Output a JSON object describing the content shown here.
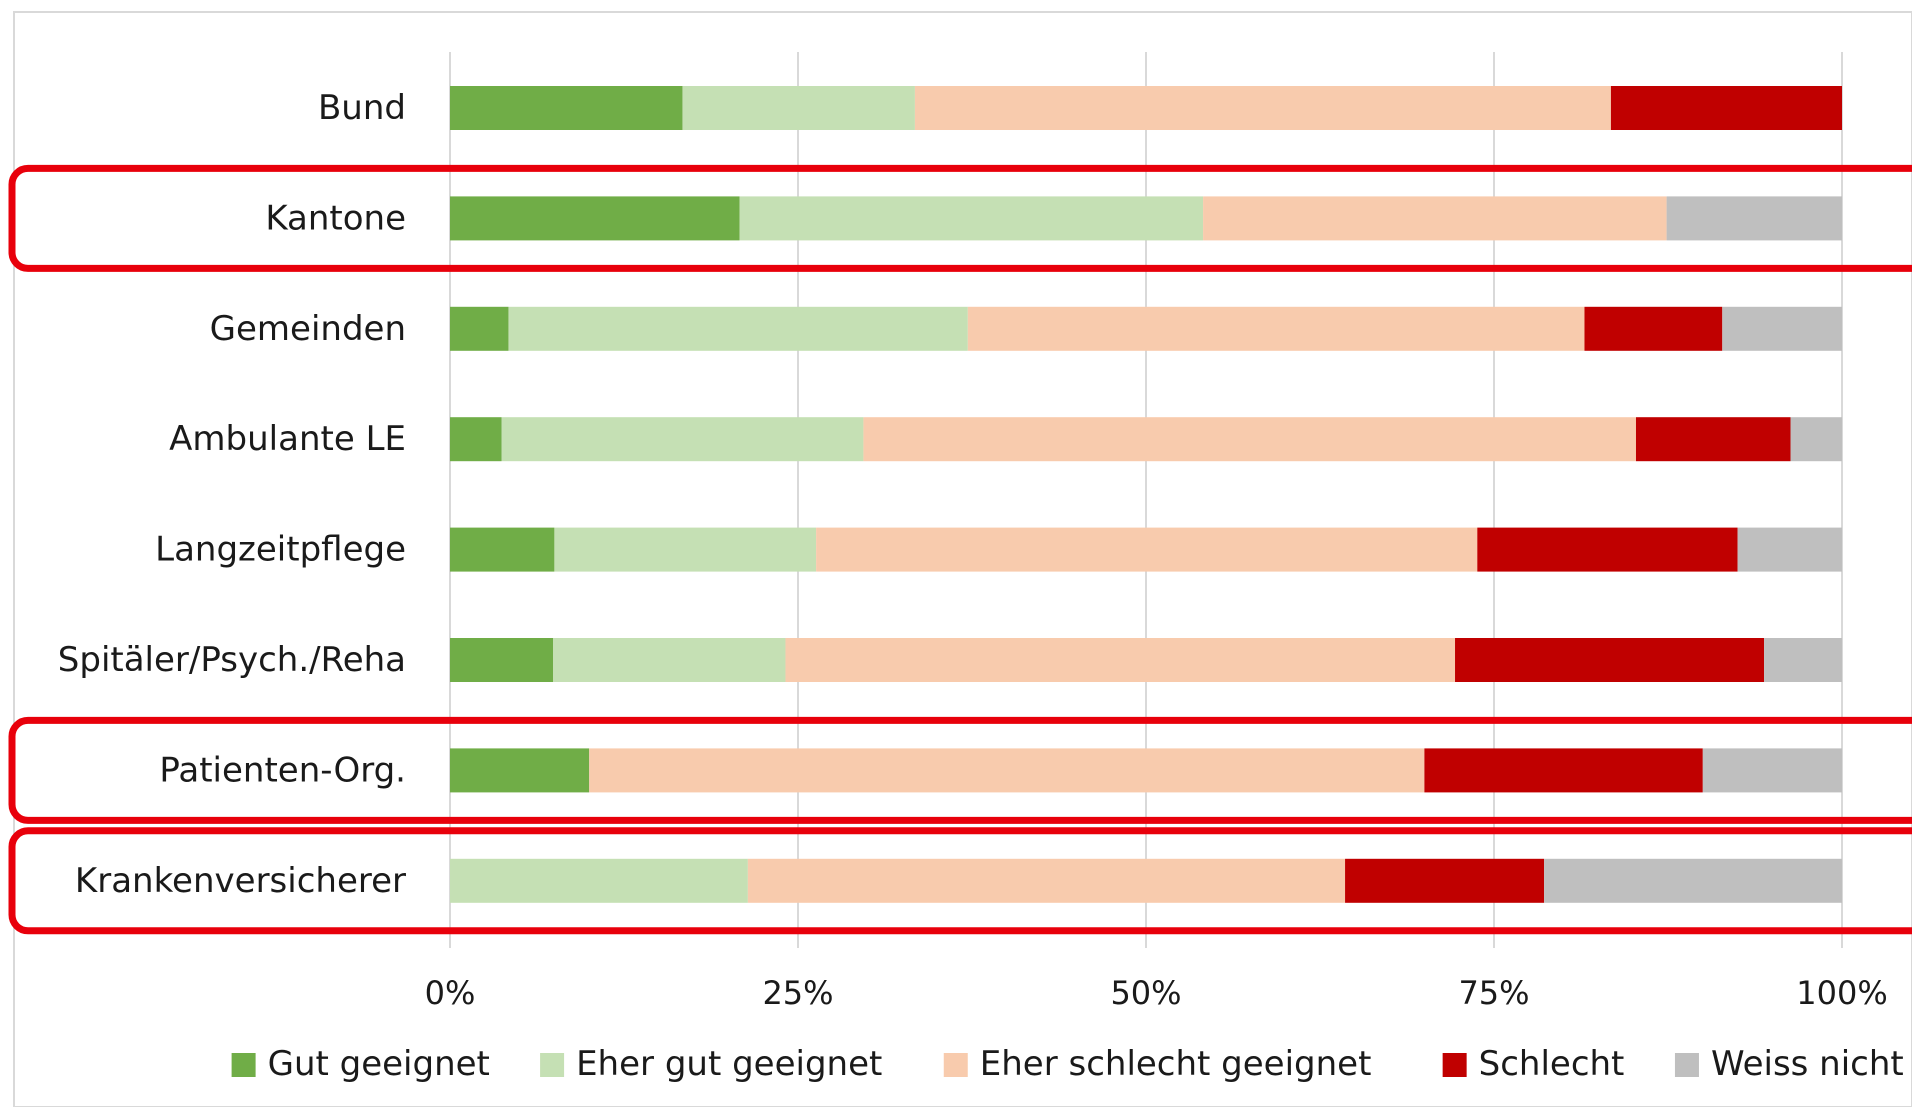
{
  "chart_data": {
    "type": "bar",
    "orientation": "horizontal",
    "stacked": true,
    "percent": true,
    "title": "",
    "xlabel": "",
    "ylabel": "",
    "xlim": [
      0,
      100
    ],
    "x_ticks": [
      "0%",
      "25%",
      "50%",
      "75%",
      "100%"
    ],
    "grid": "vertical",
    "legend_position": "bottom",
    "categories": [
      "Bund",
      "Kantone",
      "Gemeinden",
      "Ambulante LE",
      "Langzeitpflege",
      "Spitäler/Psych./Reha",
      "Patienten-Org.",
      "Krankenversicherer"
    ],
    "highlighted_categories": [
      "Kantone",
      "Patienten-Org.",
      "Krankenversicherer"
    ],
    "highlight_color": "#e8000b",
    "series": [
      {
        "name": "Gut geeignet",
        "color": "#70ad47",
        "values": [
          16.7,
          20.8,
          4.2,
          3.7,
          7.5,
          7.4,
          10.0,
          0
        ]
      },
      {
        "name": "Eher gut geeignet",
        "color": "#c5e0b4",
        "values": [
          16.7,
          33.3,
          33.0,
          26.0,
          18.8,
          16.7,
          0,
          21.4
        ]
      },
      {
        "name": "Eher schlecht geeignet",
        "color": "#f8cbad",
        "values": [
          50.0,
          33.3,
          44.3,
          55.5,
          47.5,
          48.1,
          60.0,
          42.9
        ]
      },
      {
        "name": "Schlecht",
        "color": "#c00000",
        "values": [
          16.6,
          0,
          9.9,
          11.1,
          18.7,
          22.2,
          20.0,
          14.3
        ]
      },
      {
        "name": "Weiss nicht",
        "color": "#bfbfbf",
        "values": [
          0,
          12.6,
          8.6,
          3.7,
          7.5,
          5.6,
          10.0,
          21.4
        ]
      }
    ]
  }
}
